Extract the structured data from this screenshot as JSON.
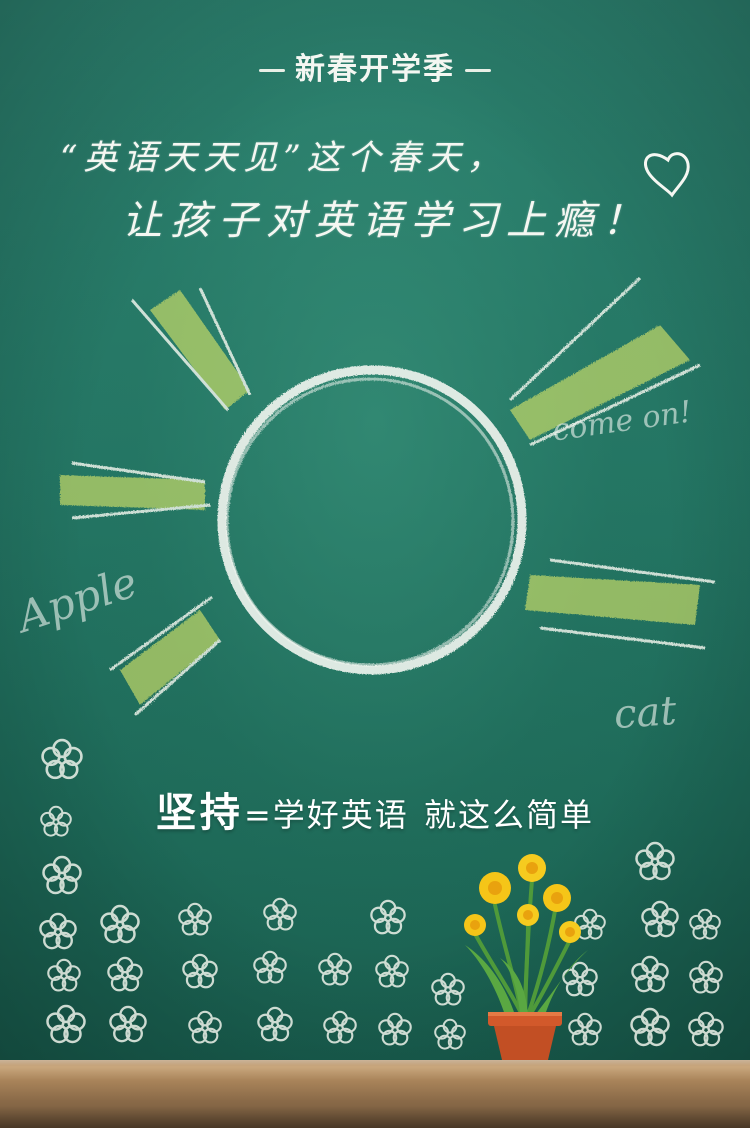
{
  "header": {
    "title": "新春开学季"
  },
  "headline": {
    "line1": "“英语天天见”这个春天，",
    "line2": "让孩子对英语学习上瘾！"
  },
  "doodles": {
    "come_on": "come on!",
    "apple": "Apple",
    "cat": "cat"
  },
  "slogan": {
    "emphasis": "坚持",
    "rest": "=学好英语",
    "tail": "就这么简单"
  },
  "colors": {
    "board": "#237563",
    "chalk": "#f5f7f2",
    "sun_rays": "#d6e36a",
    "flower": "#f5c518",
    "pot": "#d2592b"
  },
  "icons": [
    "heart-icon",
    "sun-icon",
    "flower-doodle-icon",
    "daffodil-pot-icon"
  ]
}
